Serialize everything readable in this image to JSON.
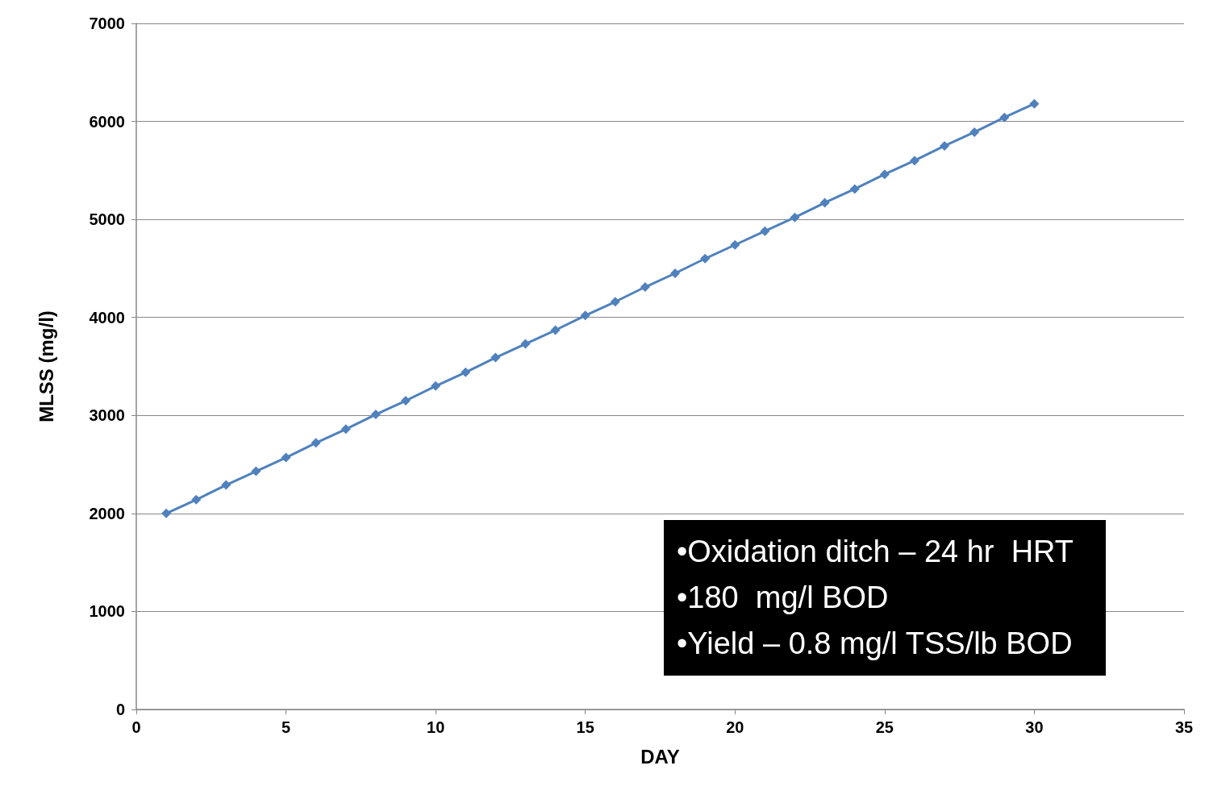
{
  "chart_data": {
    "type": "line",
    "xlabel": "DAY",
    "ylabel": "MLSS (mg/l)",
    "x": [
      1,
      2,
      3,
      4,
      5,
      6,
      7,
      8,
      9,
      10,
      11,
      12,
      13,
      14,
      15,
      16,
      17,
      18,
      19,
      20,
      21,
      22,
      23,
      24,
      25,
      26,
      27,
      28,
      29,
      30
    ],
    "series": [
      {
        "color": "#4f81bd",
        "values": [
          2000,
          2140,
          2290,
          2430,
          2570,
          2720,
          2860,
          3010,
          3150,
          3300,
          3440,
          3590,
          3730,
          3870,
          4020,
          4160,
          4310,
          4450,
          4600,
          4740,
          4880,
          5020,
          5170,
          5310,
          5460,
          5600,
          5750,
          5890,
          6040,
          6180
        ]
      }
    ],
    "xlim": [
      0,
      35
    ],
    "xticks": [
      0,
      5,
      10,
      15,
      20,
      25,
      30,
      35
    ],
    "ylim": [
      0,
      7000
    ],
    "yticks": [
      0,
      1000,
      2000,
      3000,
      4000,
      5000,
      6000,
      7000
    ],
    "grid": "y",
    "marker": "diamond",
    "line_style": "solid",
    "annotations": [
      "•Oxidation ditch – 24 hr  HRT",
      "•180  mg/l BOD",
      "•Yield – 0.8 mg/l TSS/lb BOD"
    ]
  }
}
